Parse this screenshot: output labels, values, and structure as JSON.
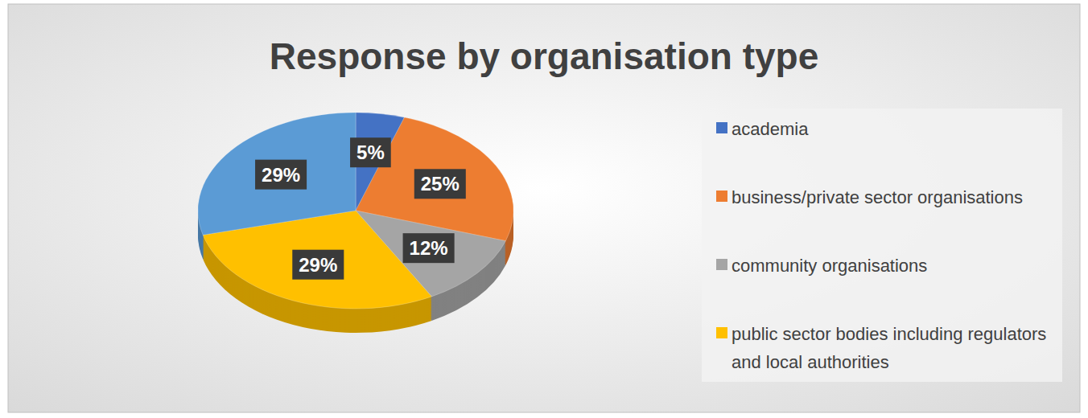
{
  "chart_data": {
    "type": "pie",
    "title": "Response by organisation type",
    "categories": [
      "academia",
      "business/private sector organisations",
      "community organisations",
      "public sector bodies including regulators and local authorities",
      null
    ],
    "values": [
      5,
      25,
      12,
      29,
      29
    ],
    "value_labels": [
      "5%",
      "25%",
      "12%",
      "29%",
      "29%"
    ],
    "colors": [
      "#4472c4",
      "#ed7d31",
      "#a5a5a5",
      "#ffc000",
      "#5b9bd5"
    ],
    "data_labels": true,
    "legend": "right"
  }
}
